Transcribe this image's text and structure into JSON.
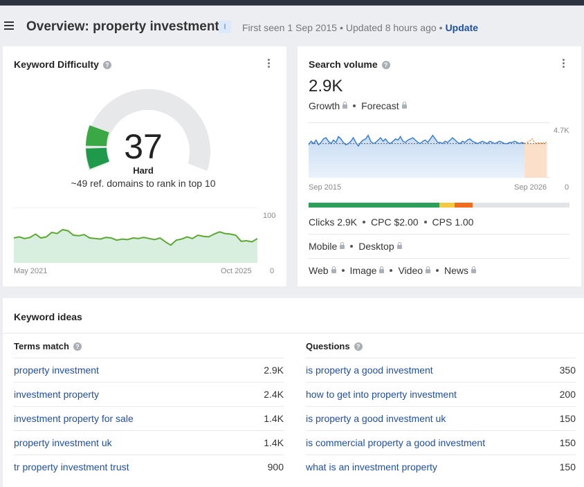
{
  "header": {
    "title": "Overview: property investment",
    "badge": "I",
    "first_seen": "First seen 1 Sep 2015",
    "updated": "Updated 8 hours ago",
    "update_link": "Update"
  },
  "keyword_difficulty": {
    "title": "Keyword Difficulty",
    "value": "37",
    "label": "Hard",
    "subtitle": "~49 ref. domains to rank in top 10",
    "chart": {
      "x_start": "May 2021",
      "x_end": "Oct 2025",
      "y_max": "100",
      "y_min": "0",
      "values": [
        45,
        47,
        44,
        46,
        52,
        45,
        47,
        55,
        53,
        60,
        58,
        50,
        49,
        51,
        45,
        44,
        43,
        46,
        45,
        41,
        43,
        42,
        45,
        44,
        46,
        44,
        42,
        45,
        38,
        32,
        41,
        43,
        47,
        44,
        50,
        48,
        47,
        52,
        56,
        53,
        52,
        50,
        39,
        40,
        38,
        44
      ]
    }
  },
  "search_volume": {
    "title": "Search volume",
    "value": "2.9K",
    "growth": "Growth",
    "forecast": "Forecast",
    "chart": {
      "x_start": "Sep 2015",
      "x_end": "Sep 2026",
      "y_max": "4.7K",
      "y_min": "0",
      "values": [
        2.8,
        3.1,
        2.9,
        3.2,
        2.8,
        3.0,
        3.3,
        3.4,
        3.1,
        2.9,
        3.2,
        3.0,
        3.5,
        3.3,
        3.0,
        2.8,
        2.9,
        3.1,
        3.4,
        3.0,
        2.7,
        3.0,
        3.2,
        3.3,
        3.6,
        3.1,
        2.9,
        3.0,
        3.2,
        3.4,
        3.1,
        3.3,
        3.0,
        2.9,
        3.1,
        3.3,
        3.2,
        3.5,
        3.1,
        3.0,
        3.2,
        3.3,
        3.4,
        3.2,
        3.0,
        2.9,
        3.1,
        3.2,
        3.0,
        3.3,
        3.6,
        3.3,
        3.0,
        3.0,
        2.9,
        3.1,
        3.0,
        3.2,
        3.4,
        3.2,
        3.0,
        2.9,
        3.1,
        3.0,
        3.2,
        3.3,
        3.1,
        3.0,
        2.9,
        3.0,
        3.1,
        3.0,
        2.9,
        3.1,
        3.0,
        2.9,
        3.0,
        3.1,
        3.0,
        2.9,
        2.9,
        3.0,
        3.0,
        3.1,
        3.0,
        2.9,
        3.0,
        2.9
      ],
      "forecast_values": [
        2.9,
        3.0,
        3.1,
        3.3,
        3.0,
        2.9,
        3.0,
        2.9,
        3.0,
        3.0
      ],
      "average": 2.9
    },
    "bar": [
      {
        "color": "#2ca05a",
        "share": 0.5
      },
      {
        "color": "#f5c842",
        "share": 0.06
      },
      {
        "color": "#f26c1d",
        "share": 0.07
      },
      {
        "color": "#e2e4e7",
        "share": 0.37
      }
    ],
    "metrics": [
      "Clicks 2.9K",
      "CPC $2.00",
      "CPS 1.00"
    ],
    "devices": [
      "Mobile",
      "Desktop"
    ],
    "serp_types": [
      "Web",
      "Image",
      "Video",
      "News"
    ]
  },
  "keyword_ideas": {
    "title": "Keyword ideas",
    "terms_match": {
      "title": "Terms match",
      "rows": [
        {
          "keyword": "property investment",
          "volume": "2.9K"
        },
        {
          "keyword": "investment property",
          "volume": "2.4K"
        },
        {
          "keyword": "investment property for sale",
          "volume": "1.4K"
        },
        {
          "keyword": "property investment uk",
          "volume": "1.4K"
        },
        {
          "keyword": "tr property investment trust",
          "volume": "900"
        }
      ]
    },
    "questions": {
      "title": "Questions",
      "rows": [
        {
          "keyword": "is property a good investment",
          "volume": "350"
        },
        {
          "keyword": "how to get into property investment",
          "volume": "200"
        },
        {
          "keyword": "is property a good investment uk",
          "volume": "150"
        },
        {
          "keyword": "is commercial property a good investment",
          "volume": "150"
        },
        {
          "keyword": "what is an investment property",
          "volume": "150"
        }
      ]
    }
  }
}
